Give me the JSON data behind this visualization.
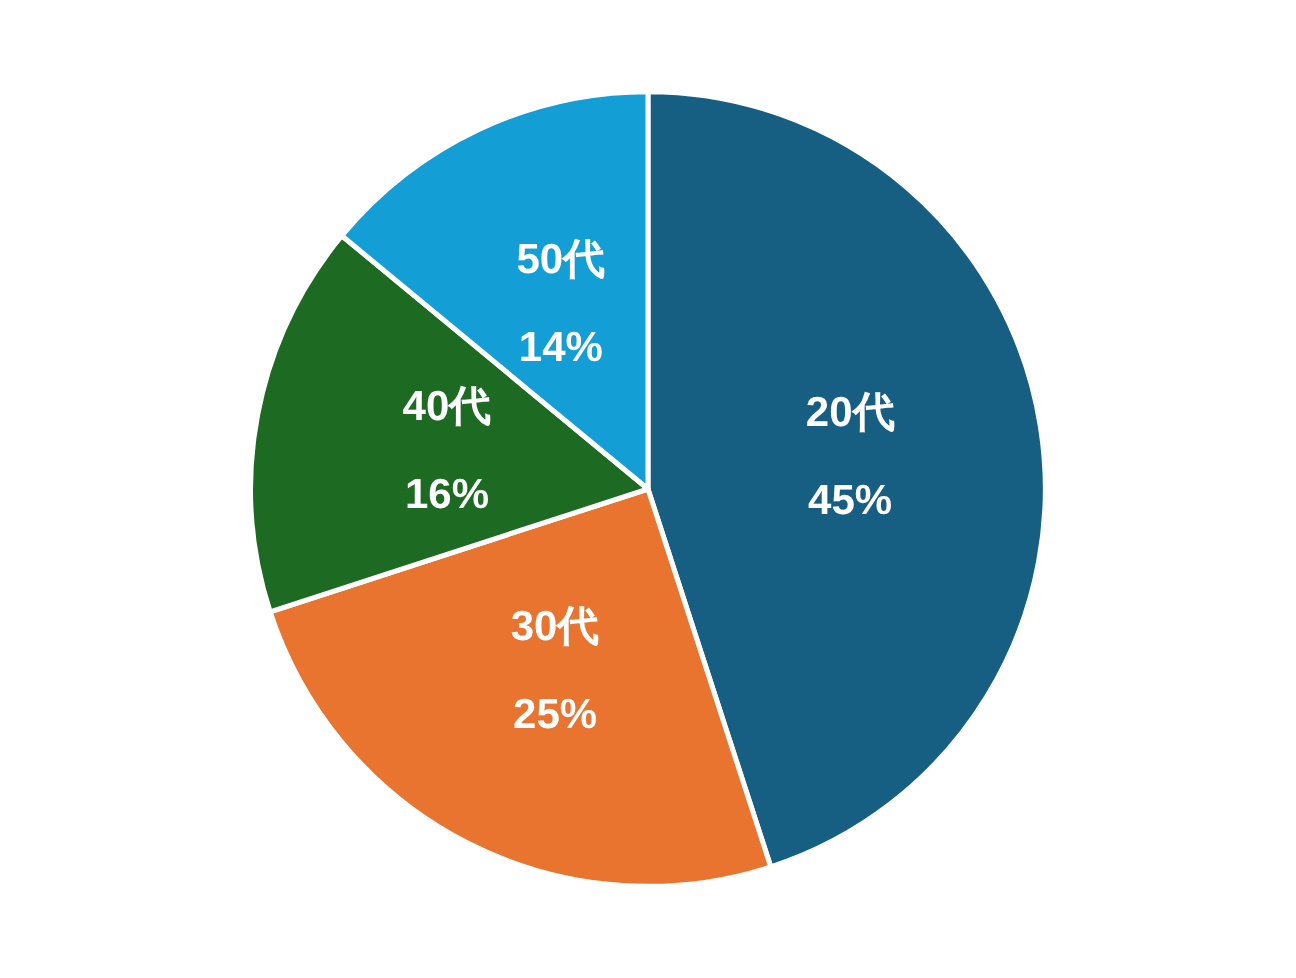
{
  "chart_data": {
    "type": "pie",
    "categories": [
      "20代",
      "30代",
      "40代",
      "50代"
    ],
    "values": [
      45,
      25,
      16,
      14
    ],
    "colors": [
      "#175f82",
      "#e8742f",
      "#1d6b22",
      "#139ed6"
    ],
    "value_labels": [
      "45%",
      "25%",
      "16%",
      "14%"
    ],
    "legend": false
  }
}
